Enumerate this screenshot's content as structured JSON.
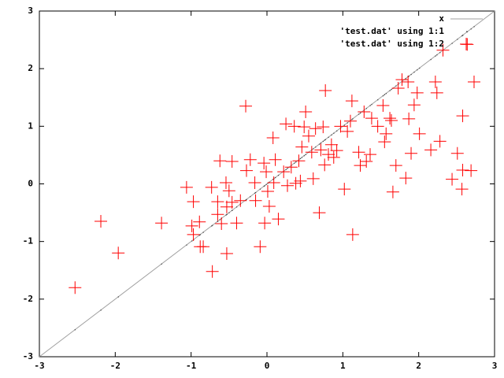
{
  "chart_data": {
    "type": "scatter",
    "xlim": [
      -3,
      3
    ],
    "ylim": [
      -3,
      3
    ],
    "xticks": [
      -3,
      -2,
      -1,
      0,
      1,
      2,
      3
    ],
    "yticks": [
      -3,
      -2,
      -1,
      0,
      1,
      2,
      3
    ],
    "legend": "top-right",
    "series": [
      {
        "name": "x",
        "style": "line",
        "color": "#a0a0a0",
        "x": [
          -3,
          3
        ],
        "values": [
          -3,
          3
        ]
      },
      {
        "name": "'test.dat' using 1:1",
        "style": "dots",
        "color": "#404040",
        "x": [
          -2.53,
          -2.19,
          -1.96,
          -1.39,
          -1.06,
          -0.97,
          -0.99,
          -0.97,
          -0.88,
          -0.84,
          -0.89,
          -0.72,
          -0.73,
          -0.62,
          -0.65,
          -0.65,
          -0.6,
          -0.53,
          -0.54,
          -0.5,
          -0.53,
          -0.46,
          -0.46,
          -0.4,
          -0.35,
          -0.28,
          -0.27,
          -0.22,
          -0.16,
          -0.15,
          -0.09,
          -0.03,
          -0.04,
          -0.01,
          0.01,
          0.03,
          0.08,
          0.09,
          0.11,
          0.15,
          0.22,
          0.25,
          0.27,
          0.32,
          0.36,
          0.38,
          0.42,
          0.44,
          0.46,
          0.49,
          0.51,
          0.55,
          0.59,
          0.61,
          0.69,
          0.64,
          0.71,
          0.74,
          0.77,
          0.76,
          0.81,
          0.85,
          0.88,
          0.92,
          0.97,
          1.02,
          1.06,
          1.1,
          1.13,
          1.12,
          1.21,
          1.23,
          1.28,
          1.31,
          1.36,
          1.38,
          1.46,
          1.53,
          1.55,
          1.57,
          1.62,
          1.64,
          1.66,
          1.7,
          1.73,
          1.78,
          1.83,
          1.86,
          1.87,
          1.9,
          1.94,
          1.98,
          2.01,
          2.16,
          2.22,
          2.24,
          2.28,
          2.32,
          2.51,
          2.58,
          2.44,
          2.57,
          2.58,
          2.64,
          2.69,
          2.73
        ],
        "values": [
          -2.53,
          -2.19,
          -1.96,
          -1.39,
          -1.06,
          -0.97,
          -0.99,
          -0.97,
          -0.88,
          -0.84,
          -0.89,
          -0.72,
          -0.73,
          -0.62,
          -0.65,
          -0.65,
          -0.6,
          -0.53,
          -0.54,
          -0.5,
          -0.53,
          -0.46,
          -0.46,
          -0.4,
          -0.35,
          -0.28,
          -0.27,
          -0.22,
          -0.16,
          -0.15,
          -0.09,
          -0.03,
          -0.04,
          -0.01,
          0.01,
          0.03,
          0.08,
          0.09,
          0.11,
          0.15,
          0.22,
          0.25,
          0.27,
          0.32,
          0.36,
          0.38,
          0.42,
          0.44,
          0.46,
          0.49,
          0.51,
          0.55,
          0.59,
          0.61,
          0.69,
          0.64,
          0.71,
          0.74,
          0.77,
          0.76,
          0.81,
          0.85,
          0.88,
          0.92,
          0.97,
          1.02,
          1.06,
          1.1,
          1.13,
          1.12,
          1.21,
          1.23,
          1.28,
          1.31,
          1.36,
          1.38,
          1.46,
          1.53,
          1.55,
          1.57,
          1.62,
          1.64,
          1.66,
          1.7,
          1.73,
          1.78,
          1.83,
          1.86,
          1.87,
          1.9,
          1.94,
          1.98,
          2.01,
          2.16,
          2.22,
          2.24,
          2.28,
          2.32,
          2.51,
          2.58,
          2.44,
          2.57,
          2.58,
          2.64,
          2.69,
          2.73
        ]
      },
      {
        "name": "'test.dat' using 1:2",
        "style": "points",
        "color": "#ff0000",
        "x": [
          -2.53,
          -2.19,
          -1.96,
          -1.39,
          -1.06,
          -0.97,
          -0.99,
          -0.97,
          -0.88,
          -0.84,
          -0.89,
          -0.72,
          -0.73,
          -0.62,
          -0.65,
          -0.65,
          -0.6,
          -0.53,
          -0.54,
          -0.5,
          -0.53,
          -0.46,
          -0.46,
          -0.4,
          -0.35,
          -0.28,
          -0.27,
          -0.22,
          -0.16,
          -0.15,
          -0.09,
          -0.03,
          -0.04,
          -0.01,
          0.01,
          0.03,
          0.08,
          0.09,
          0.11,
          0.15,
          0.22,
          0.25,
          0.27,
          0.32,
          0.36,
          0.38,
          0.42,
          0.44,
          0.46,
          0.49,
          0.51,
          0.55,
          0.59,
          0.61,
          0.69,
          0.64,
          0.71,
          0.74,
          0.77,
          0.76,
          0.81,
          0.85,
          0.88,
          0.92,
          0.97,
          1.02,
          1.06,
          1.1,
          1.13,
          1.12,
          1.21,
          1.23,
          1.28,
          1.31,
          1.36,
          1.38,
          1.46,
          1.53,
          1.55,
          1.57,
          1.62,
          1.64,
          1.66,
          1.7,
          1.73,
          1.78,
          1.83,
          1.86,
          1.87,
          1.9,
          1.94,
          1.98,
          2.01,
          2.16,
          2.22,
          2.24,
          2.28,
          2.32,
          2.51,
          2.58,
          2.44,
          2.57,
          2.58,
          2.64,
          2.69,
          2.73
        ],
        "values": [
          -1.8,
          -0.65,
          -1.2,
          -0.68,
          -0.06,
          -0.31,
          -0.73,
          -0.88,
          -1.09,
          -1.09,
          -0.66,
          -1.52,
          -0.06,
          0.4,
          -0.31,
          -0.53,
          -0.69,
          -1.21,
          0.02,
          -0.12,
          -0.4,
          0.39,
          -0.32,
          -0.68,
          -0.29,
          1.35,
          0.23,
          0.42,
          0.02,
          -0.29,
          -1.09,
          -0.68,
          0.36,
          0.21,
          -0.13,
          -0.39,
          0.8,
          0.02,
          0.42,
          -0.61,
          0.21,
          1.04,
          -0.03,
          0.29,
          1.0,
          0.01,
          0.4,
          0.05,
          0.64,
          0.99,
          1.25,
          0.83,
          0.55,
          0.09,
          -0.5,
          0.96,
          0.59,
          0.99,
          1.62,
          0.33,
          0.51,
          0.68,
          0.46,
          0.58,
          1.0,
          -0.09,
          0.91,
          1.09,
          -0.88,
          1.44,
          0.55,
          0.32,
          1.25,
          0.39,
          0.51,
          1.14,
          1.0,
          1.36,
          0.73,
          0.87,
          1.14,
          1.1,
          -0.14,
          0.32,
          1.66,
          1.81,
          0.1,
          1.77,
          1.13,
          0.53,
          1.37,
          1.58,
          0.87,
          0.59,
          1.77,
          1.58,
          0.74,
          2.32,
          0.53,
          1.18,
          0.08,
          -0.09,
          0.24,
          2.42,
          0.23,
          1.77
        ]
      }
    ]
  }
}
